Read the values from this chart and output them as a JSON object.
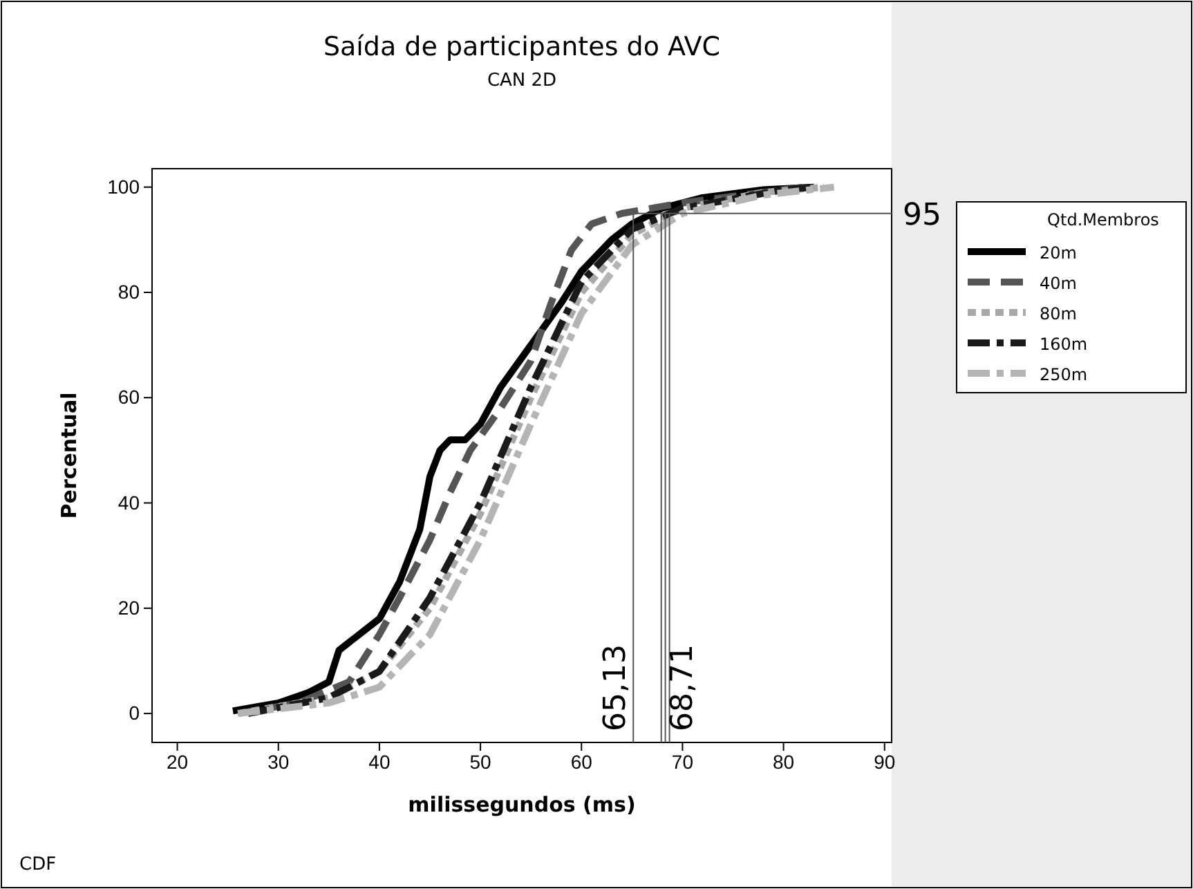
{
  "chart_data": {
    "type": "line",
    "title": "Saída de participantes do AVC",
    "subtitle": "CAN 2D",
    "xlabel": "milissegundos (ms)",
    "ylabel": "Percentual",
    "legend_title": "Qtd.Membros",
    "legend": "right",
    "grid": false,
    "xlim": [
      17.5,
      90.7
    ],
    "xticks": [
      20,
      30,
      40,
      50,
      60,
      70,
      80,
      90
    ],
    "ylim": [
      -5.5,
      103.5
    ],
    "yticks": [
      0,
      20,
      40,
      60,
      80,
      100
    ],
    "series": [
      {
        "name": "20m",
        "color": "#000000",
        "line_style": "solid",
        "x": [
          25.5,
          30,
          33,
          35,
          36,
          38,
          40,
          42,
          44,
          45,
          46,
          47,
          48.5,
          50,
          52,
          55,
          58,
          60,
          63,
          65,
          68,
          72,
          78,
          83
        ],
        "values": [
          0.5,
          2,
          4,
          6,
          12,
          15,
          18,
          25,
          35,
          45,
          50,
          52,
          52,
          55,
          62,
          70,
          78,
          84,
          90,
          93,
          96,
          98,
          99.5,
          100
        ]
      },
      {
        "name": "40m",
        "color": "#555555",
        "line_style": "dashed",
        "x": [
          26,
          32,
          37,
          40,
          42,
          45,
          47,
          49,
          52,
          55,
          57,
          59,
          61,
          64,
          70,
          78,
          82
        ],
        "values": [
          0,
          2,
          6,
          15,
          22,
          33,
          42,
          50,
          58,
          67,
          78,
          88,
          93,
          95,
          97,
          99,
          100
        ]
      },
      {
        "name": "80m",
        "color": "#a8a8a8",
        "line_style": "dotted",
        "x": [
          26,
          35,
          40,
          45,
          50,
          55,
          60,
          65,
          70,
          78,
          84
        ],
        "values": [
          0,
          3,
          8,
          20,
          38,
          60,
          80,
          91,
          96,
          99,
          100
        ]
      },
      {
        "name": "160m",
        "color": "#1a1a1a",
        "line_style": "dashdot",
        "x": [
          27,
          35,
          40,
          45,
          50,
          55,
          60,
          65,
          70,
          80,
          83
        ],
        "values": [
          0,
          3,
          8,
          22,
          40,
          62,
          82,
          92,
          96,
          99.5,
          100
        ]
      },
      {
        "name": "250m",
        "color": "#b4b4b4",
        "line_style": "dashdot",
        "x": [
          26,
          35,
          40,
          45,
          50,
          55,
          60,
          65,
          70,
          78,
          85
        ],
        "values": [
          0,
          2,
          5,
          15,
          33,
          55,
          76,
          89,
          95,
          98.5,
          100
        ]
      }
    ],
    "ref_lines": [
      {
        "axis": "y",
        "value": 95,
        "label": "95"
      },
      {
        "axis": "x",
        "value": 65.13,
        "label": "65,13"
      },
      {
        "axis": "x",
        "value": 67.9,
        "label": null
      },
      {
        "axis": "x",
        "value": 68.3,
        "label": null
      },
      {
        "axis": "x",
        "value": 68.71,
        "label": "68,71"
      }
    ],
    "annotations": [
      "CDF"
    ]
  }
}
